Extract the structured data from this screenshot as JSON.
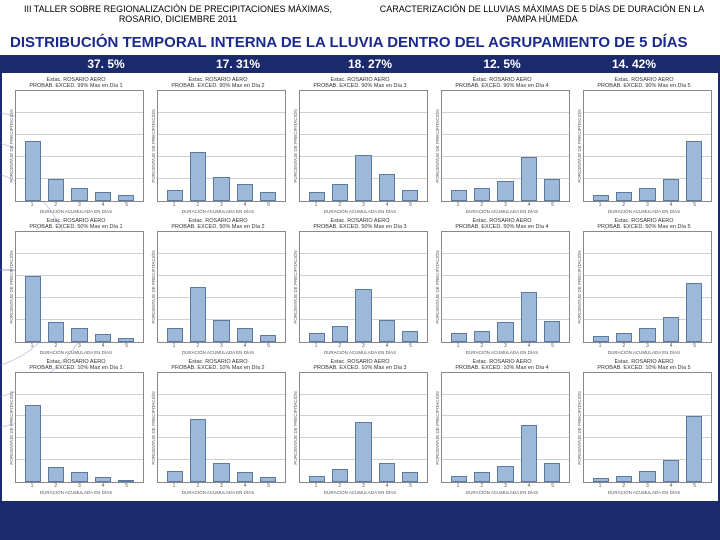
{
  "header": {
    "left": "III TALLER SOBRE REGIONALIZACIÓN DE PRECIPITACIONES MÁXIMAS, ROSARIO, DICIEMBRE 2011",
    "right": "CARACTERIZACIÓN DE LLUVIAS MÁXIMAS DE 5 DÍAS DE DURACIÓN EN LA PAMPA HÚMEDA"
  },
  "title": "DISTRIBUCIÓN TEMPORAL INTERNA DE LA LLUVIA DENTRO DEL AGRUPAMIENTO DE 5 DÍAS",
  "percentages": [
    "37. 5%",
    "17. 31%",
    "18. 27%",
    "12. 5%",
    "14. 42%"
  ],
  "ylabel": "PORCENTAJE DE PRECIPITACIÓN",
  "xlabel": "DURACIÓN ACUMULADA EN DÍAS",
  "xticks": [
    "1",
    "2",
    "3",
    "4",
    "5"
  ],
  "ylim": [
    0,
    100
  ],
  "grid_step": 20,
  "bar_fill": "#9db8d8",
  "bar_border": "#5a7aa0",
  "grid_color": "#d0d0d0",
  "bg_color": "#1a2a6c",
  "title_color": "#1a2a8c",
  "panels": [
    {
      "t1": "Estac. ROSARIO AERO",
      "t2": "PROBAB. EXCED. 99% Max en Día 1",
      "v": [
        55,
        20,
        12,
        8,
        5
      ]
    },
    {
      "t1": "Estac. ROSARIO AERO",
      "t2": "PROBAB. EXCED. 90% Max en Día 2",
      "v": [
        10,
        45,
        22,
        15,
        8
      ]
    },
    {
      "t1": "Estac. ROSARIO AERO",
      "t2": "PROBAB. EXCED. 90% Max en Día 3",
      "v": [
        8,
        15,
        42,
        25,
        10
      ]
    },
    {
      "t1": "Estac. ROSARIO AERO",
      "t2": "PROBAB. EXCED. 90% Max en Día 4",
      "v": [
        10,
        12,
        18,
        40,
        20
      ]
    },
    {
      "t1": "Estac. ROSARIO AERO",
      "t2": "PROBAB. EXCED. 90% Max en Día 5",
      "v": [
        5,
        8,
        12,
        20,
        55
      ]
    },
    {
      "t1": "Estac. ROSARIO AERO",
      "t2": "PROBAB. EXCED. 50% Max en Día 1",
      "v": [
        60,
        18,
        12,
        7,
        3
      ]
    },
    {
      "t1": "Estac. ROSARIO AERO",
      "t2": "PROBAB. EXCED. 50% Max en Día 2",
      "v": [
        12,
        50,
        20,
        12,
        6
      ]
    },
    {
      "t1": "Estac. ROSARIO AERO",
      "t2": "PROBAB. EXCED. 50% Max en Día 3",
      "v": [
        8,
        14,
        48,
        20,
        10
      ]
    },
    {
      "t1": "Estac. ROSARIO AERO",
      "t2": "PROBAB. EXCED. 50% Max en Día 4",
      "v": [
        8,
        10,
        18,
        45,
        19
      ]
    },
    {
      "t1": "Estac. ROSARIO AERO",
      "t2": "PROBAB. EXCED. 50% Max en Día 5",
      "v": [
        5,
        8,
        12,
        22,
        53
      ]
    },
    {
      "t1": "Estac. ROSARIO AERO",
      "t2": "PROBAB. EXCED. 10% Max en Día 1",
      "v": [
        70,
        14,
        9,
        5,
        2
      ]
    },
    {
      "t1": "Estac. ROSARIO AERO",
      "t2": "PROBAB. EXCED. 10% Max en Día 2",
      "v": [
        10,
        58,
        18,
        9,
        5
      ]
    },
    {
      "t1": "Estac. ROSARIO AERO",
      "t2": "PROBAB. EXCED. 10% Max en Día 3",
      "v": [
        6,
        12,
        55,
        18,
        9
      ]
    },
    {
      "t1": "Estac. ROSARIO AERO",
      "t2": "PROBAB. EXCED. 10% Max en Día 4",
      "v": [
        6,
        9,
        15,
        52,
        18
      ]
    },
    {
      "t1": "Estac. ROSARIO AERO",
      "t2": "PROBAB. EXCED. 10% Max en Día 5",
      "v": [
        4,
        6,
        10,
        20,
        60
      ]
    }
  ]
}
